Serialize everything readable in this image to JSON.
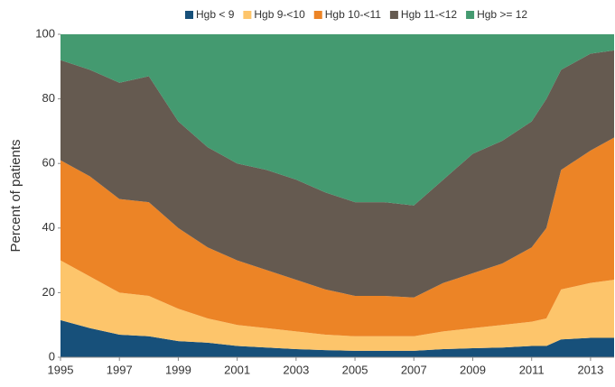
{
  "chart_data": {
    "type": "stacked_area",
    "y_label": "Percent of patients",
    "x": [
      1995,
      1996,
      1997,
      1998,
      1999,
      2000,
      2001,
      2002,
      2003,
      2004,
      2005,
      2006,
      2007,
      2008,
      2009,
      2010,
      2011,
      2011.5,
      2012,
      2013,
      2013.8
    ],
    "series": [
      {
        "name": "Hgb < 9",
        "color": "#17507a",
        "values": [
          11.5,
          9,
          7,
          6.5,
          5,
          4.5,
          3.5,
          3,
          2.5,
          2.2,
          2,
          2,
          2,
          2.5,
          2.8,
          3,
          3.5,
          3.5,
          5.5,
          6,
          6
        ]
      },
      {
        "name": "Hgb 9-<10",
        "color": "#fdc56b",
        "values": [
          18.5,
          16,
          13,
          12.5,
          10,
          7.5,
          6.5,
          6,
          5.5,
          4.8,
          4.5,
          4.5,
          4.5,
          5.5,
          6.2,
          7,
          7.5,
          8.5,
          15.5,
          17,
          18
        ]
      },
      {
        "name": "Hgb 10-<11",
        "color": "#ec8426",
        "values": [
          31,
          31,
          29,
          29,
          25,
          22,
          20,
          18,
          16,
          14,
          12.5,
          12.5,
          12,
          15,
          17,
          19,
          23,
          28,
          37,
          41,
          44
        ]
      },
      {
        "name": "Hgb 11-<12",
        "color": "#655a50",
        "values": [
          31,
          33,
          36,
          39,
          33,
          31,
          30,
          31,
          31,
          30,
          29,
          29,
          28.5,
          32,
          37,
          38,
          39,
          40,
          31,
          30,
          27
        ]
      },
      {
        "name": "Hgb >= 12",
        "color": "#449a70",
        "values": [
          8,
          11,
          15,
          13,
          27,
          35,
          40,
          42,
          45,
          49,
          52,
          52,
          53,
          45,
          37,
          33,
          27,
          20,
          11,
          6,
          5
        ]
      }
    ],
    "xlim": [
      1995,
      2013.8
    ],
    "xticks": [
      1995,
      1997,
      1999,
      2001,
      2003,
      2005,
      2007,
      2009,
      2011,
      2013
    ],
    "ylim": [
      0,
      100
    ],
    "yticks": [
      0,
      20,
      40,
      60,
      80,
      100
    ],
    "grid": false,
    "legend": "top"
  }
}
